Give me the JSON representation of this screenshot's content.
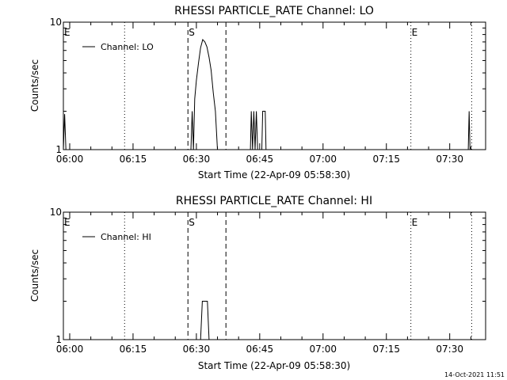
{
  "footer": {
    "timestamp": "14-Oct-2021 11:51"
  },
  "chart_data": [
    {
      "type": "line",
      "title": "RHESSI PARTICLE_RATE Channel: LO",
      "xlabel": "Start Time (22-Apr-09 05:58:30)",
      "ylabel": "Counts/sec",
      "yscale": "log",
      "ylim": [
        1,
        10
      ],
      "ytick_labels": [
        "1",
        "10"
      ],
      "xlim_minutes": [
        -1.5,
        98.5
      ],
      "xtick_labels": [
        "06:00",
        "06:15",
        "06:30",
        "06:45",
        "07:00",
        "07:15",
        "07:30"
      ],
      "xtick_minutes": [
        0,
        15,
        30,
        45,
        60,
        75,
        90
      ],
      "legend": {
        "label": "Channel: LO",
        "position": "top-left"
      },
      "markers": [
        {
          "label": "E",
          "minute": -1.5,
          "style": "none"
        },
        {
          "label": "",
          "minute": 13.0,
          "style": "dotted"
        },
        {
          "label": "S",
          "minute": 28.0,
          "style": "dashed"
        },
        {
          "label": "",
          "minute": 37.0,
          "style": "dashed"
        },
        {
          "label": "E",
          "minute": 80.8,
          "style": "dotted"
        },
        {
          "label": "",
          "minute": 95.2,
          "style": "dotted"
        }
      ],
      "series": [
        {
          "name": "Channel: LO",
          "points": [
            [
              -1.5,
              1.0
            ],
            [
              -1.2,
              1.9
            ],
            [
              -0.9,
              1.0
            ],
            [
              28.7,
              1.0
            ],
            [
              29.0,
              2.0
            ],
            [
              29.3,
              1.0
            ],
            [
              29.6,
              2.5
            ],
            [
              30.0,
              3.5
            ],
            [
              30.5,
              4.8
            ],
            [
              31.0,
              6.3
            ],
            [
              31.5,
              7.3
            ],
            [
              32.0,
              7.0
            ],
            [
              32.5,
              6.4
            ],
            [
              33.0,
              5.3
            ],
            [
              33.5,
              4.2
            ],
            [
              34.0,
              2.8
            ],
            [
              34.5,
              2.0
            ],
            [
              35.0,
              1.0
            ],
            [
              42.8,
              1.0
            ],
            [
              43.0,
              2.0
            ],
            [
              43.3,
              1.0
            ],
            [
              43.6,
              2.0
            ],
            [
              43.9,
              1.0
            ],
            [
              44.2,
              2.0
            ],
            [
              44.5,
              1.0
            ],
            [
              45.5,
              1.0
            ],
            [
              45.7,
              2.0
            ],
            [
              46.3,
              2.0
            ],
            [
              46.5,
              1.0
            ],
            [
              94.4,
              1.0
            ],
            [
              94.6,
              2.0
            ],
            [
              94.8,
              1.0
            ]
          ]
        }
      ]
    },
    {
      "type": "line",
      "title": "RHESSI PARTICLE_RATE Channel: HI",
      "xlabel": "Start Time (22-Apr-09 05:58:30)",
      "ylabel": "Counts/sec",
      "yscale": "log",
      "ylim": [
        1,
        10
      ],
      "ytick_labels": [
        "1",
        "10"
      ],
      "xlim_minutes": [
        -1.5,
        98.5
      ],
      "xtick_labels": [
        "06:00",
        "06:15",
        "06:30",
        "06:45",
        "07:00",
        "07:15",
        "07:30"
      ],
      "xtick_minutes": [
        0,
        15,
        30,
        45,
        60,
        75,
        90
      ],
      "legend": {
        "label": "Channel: HI",
        "position": "top-left"
      },
      "markers": [
        {
          "label": "E",
          "minute": -1.5,
          "style": "none"
        },
        {
          "label": "",
          "minute": 13.0,
          "style": "dotted"
        },
        {
          "label": "S",
          "minute": 28.0,
          "style": "dashed"
        },
        {
          "label": "",
          "minute": 37.0,
          "style": "dashed"
        },
        {
          "label": "E",
          "minute": 80.8,
          "style": "dotted"
        },
        {
          "label": "",
          "minute": 95.2,
          "style": "dotted"
        }
      ],
      "series": [
        {
          "name": "Channel: HI",
          "points": [
            [
              31.0,
              1.0
            ],
            [
              31.4,
              2.0
            ],
            [
              32.6,
              2.0
            ],
            [
              33.0,
              1.0
            ]
          ]
        }
      ]
    }
  ]
}
